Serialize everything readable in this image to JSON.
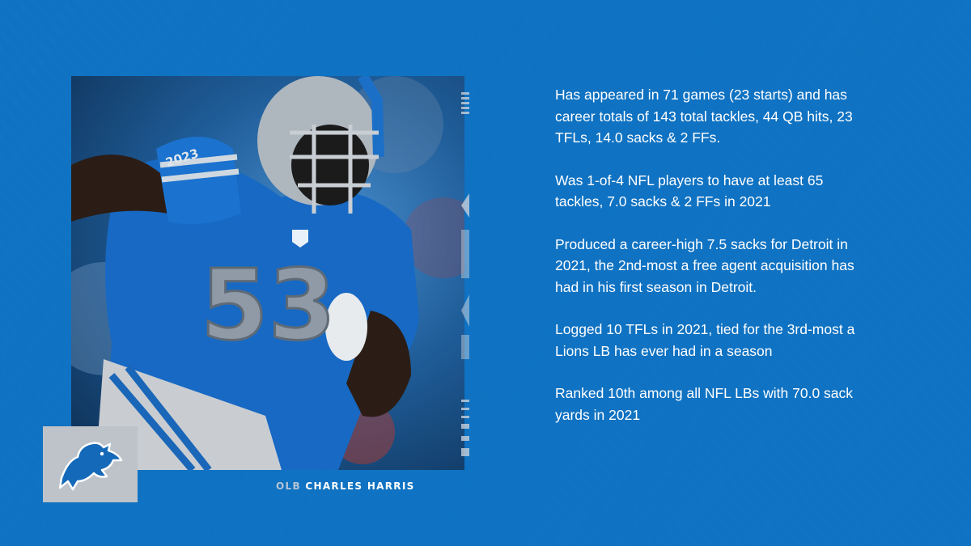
{
  "player": {
    "position": "OLB",
    "name": "CHARLES HARRIS",
    "jersey_number": "53",
    "sleeve_text": "2023"
  },
  "facts": [
    "Has appeared in 71 games (23 starts) and has career totals of 143 total tackles, 44 QB hits, 23 TFLs, 14.0 sacks & 2 FFs.",
    "Was 1-of-4 NFL players to have at least 65 tackles, 7.0 sacks & 2 FFs in 2021",
    "Produced a career-high 7.5 sacks for Detroit in 2021, the 2nd-most a free agent acquisition has had in his first season in Detroit.",
    "Logged 10 TFLs in 2021, tied for the 3rd-most a Lions LB has ever had in a season",
    "Ranked 10th among all NFL LBs with 70.0 sack yards in 2021"
  ],
  "colors": {
    "background": "#0f72c2",
    "honolulu_blue": "#1472c4",
    "silver": "#bdc3c9",
    "text": "#ffffff"
  },
  "icons": {
    "logo": "lions-logo-icon"
  }
}
